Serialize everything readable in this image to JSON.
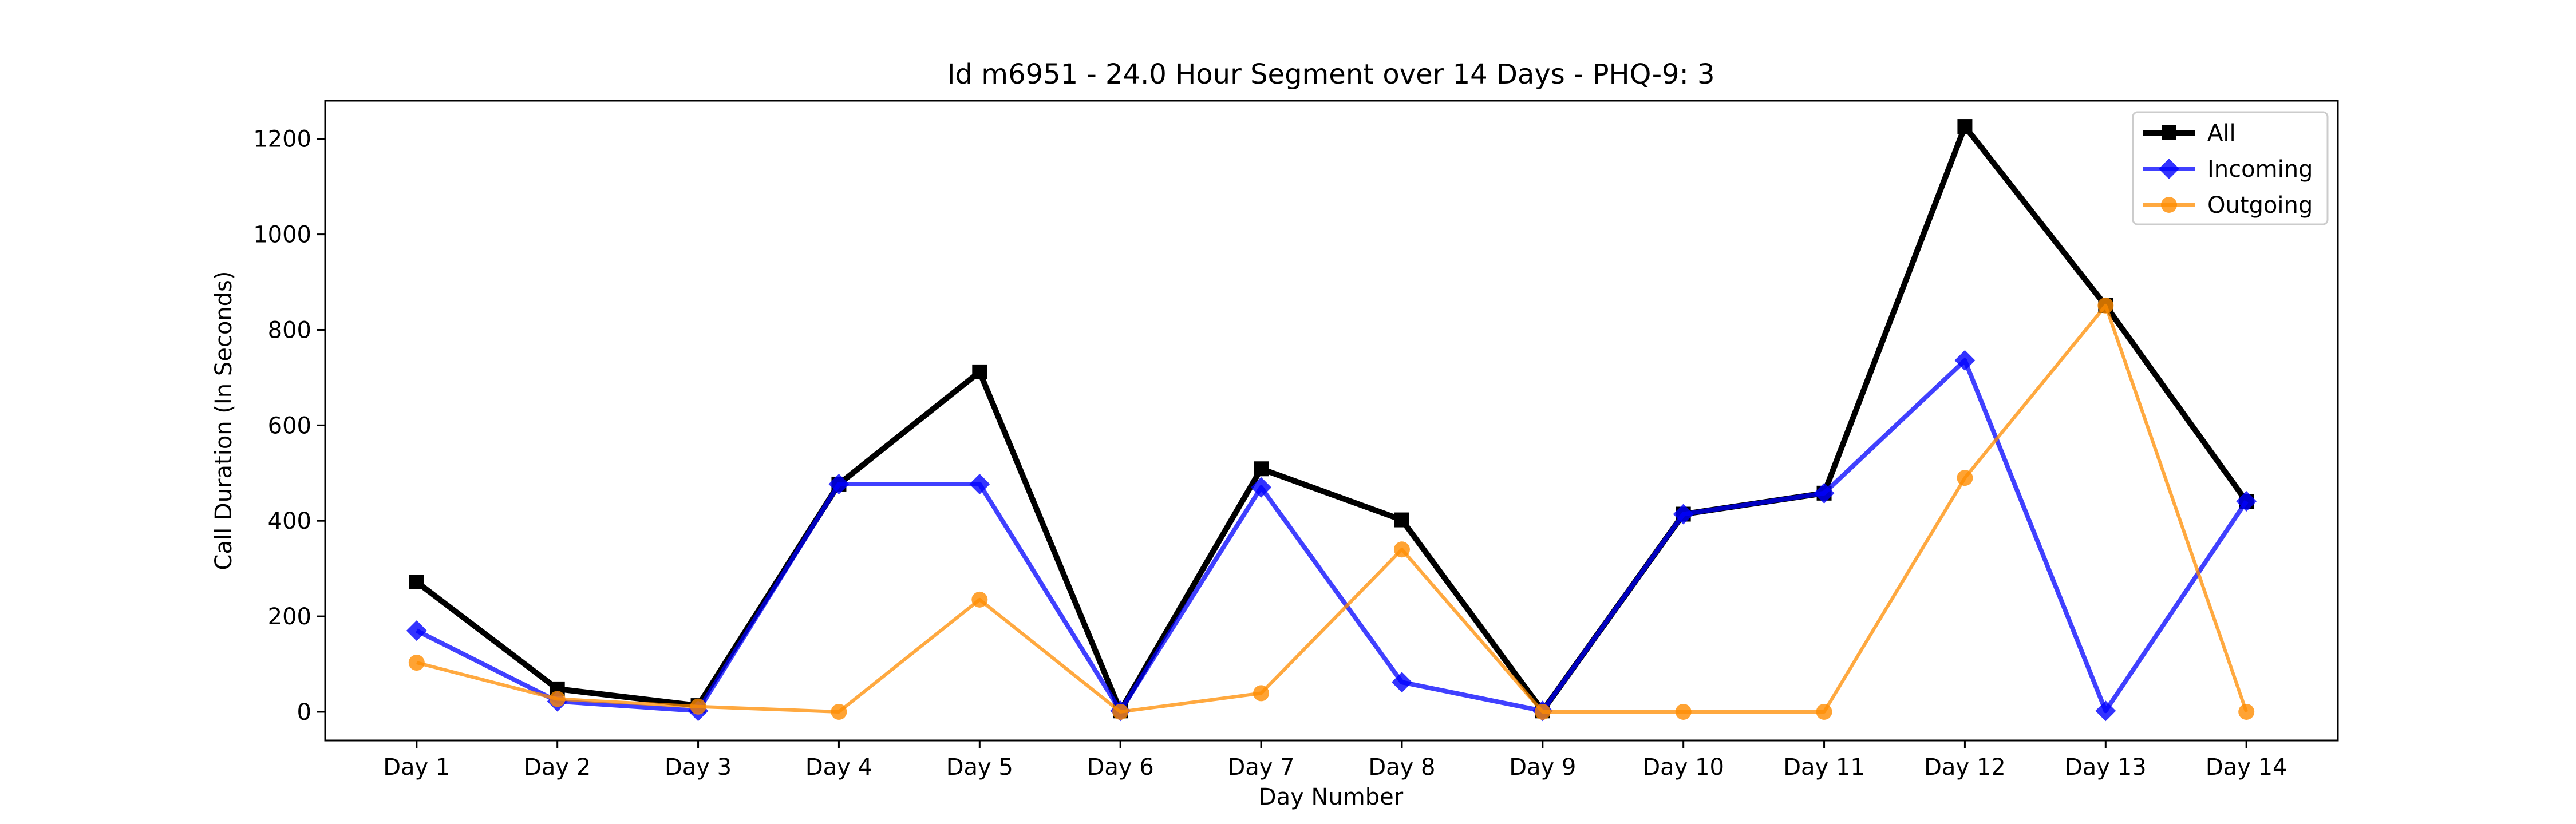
{
  "chart_data": {
    "type": "line",
    "title": "Id m6951 - 24.0 Hour Segment over 14 Days - PHQ-9: 3",
    "xlabel": "Day Number",
    "ylabel": "Call Duration (In Seconds)",
    "categories": [
      "Day 1",
      "Day 2",
      "Day 3",
      "Day 4",
      "Day 5",
      "Day 6",
      "Day 7",
      "Day 8",
      "Day 9",
      "Day 10",
      "Day 11",
      "Day 12",
      "Day 13",
      "Day 14"
    ],
    "ylim": [
      -60,
      1280
    ],
    "yticks": [
      0,
      200,
      400,
      600,
      800,
      1000,
      1200
    ],
    "grid": false,
    "legend_position": "top-right",
    "series": [
      {
        "name": "All",
        "color": "#000000",
        "marker": "square",
        "values": [
          272,
          48,
          13,
          477,
          712,
          2,
          509,
          402,
          2,
          414,
          458,
          1226,
          851,
          441
        ]
      },
      {
        "name": "Incoming",
        "color": "#0000ff",
        "marker": "diamond",
        "values": [
          170,
          22,
          2,
          477,
          477,
          2,
          470,
          62,
          2,
          414,
          458,
          736,
          2,
          441
        ]
      },
      {
        "name": "Outgoing",
        "color": "#ff8c00",
        "marker": "circle",
        "values": [
          103,
          27,
          11,
          0,
          235,
          0,
          39,
          340,
          0,
          0,
          0,
          490,
          851,
          0
        ]
      }
    ]
  }
}
